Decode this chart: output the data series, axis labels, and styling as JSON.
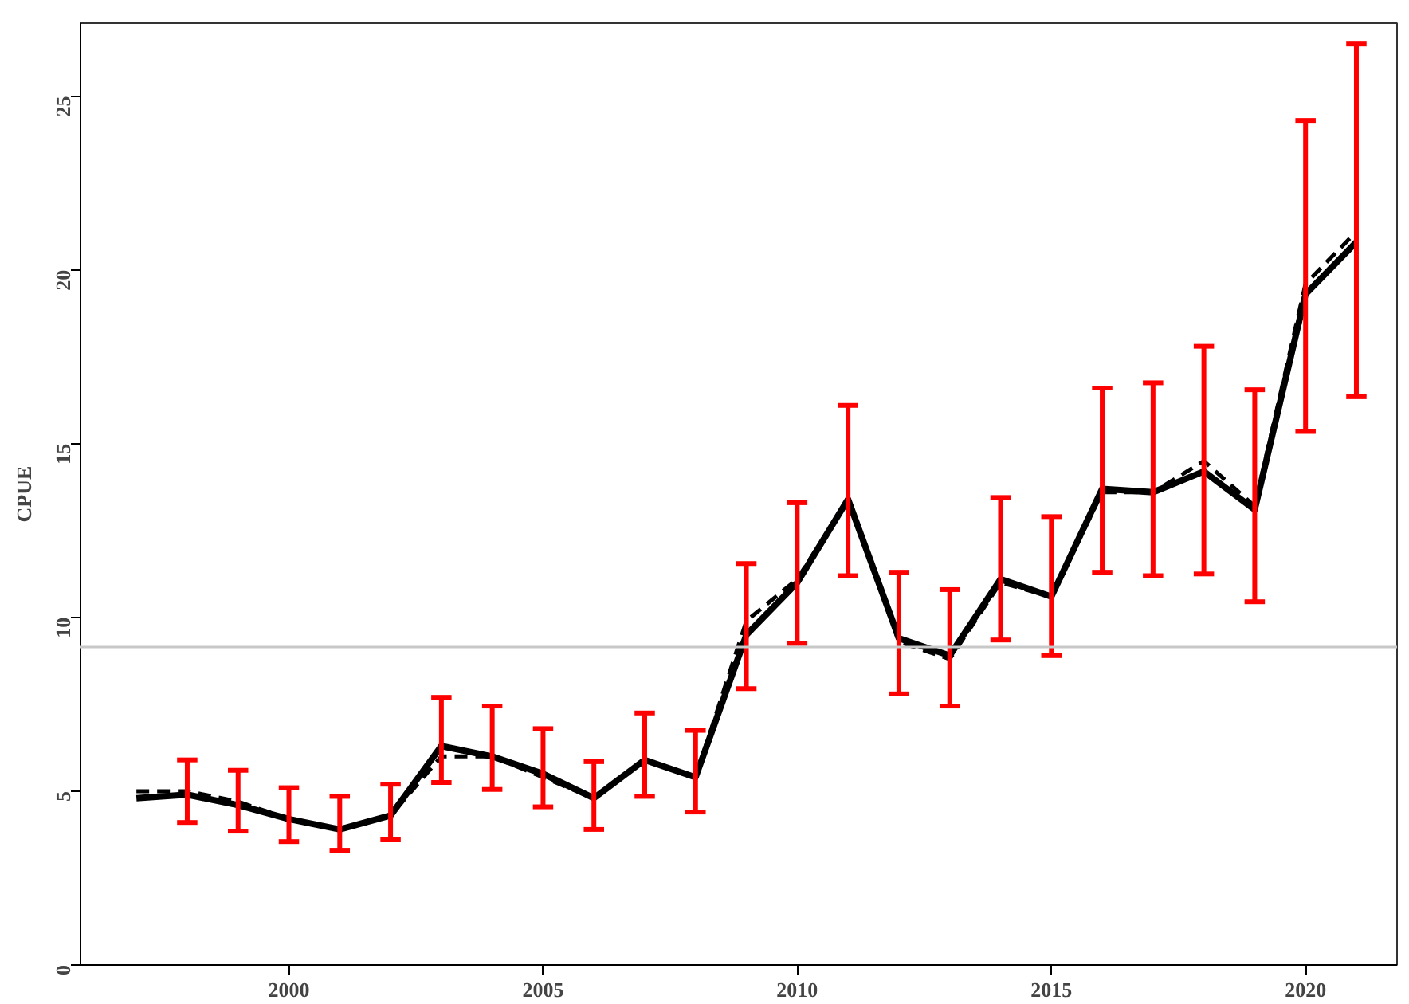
{
  "chart_data": {
    "type": "line",
    "ylabel": "CPUE",
    "x": [
      1997,
      1998,
      1999,
      2000,
      2001,
      2002,
      2003,
      2004,
      2005,
      2006,
      2007,
      2008,
      2009,
      2010,
      2011,
      2012,
      2013,
      2014,
      2015,
      2016,
      2017,
      2018,
      2019,
      2020,
      2021
    ],
    "series": [
      {
        "color": "#000000",
        "line_style": "solid",
        "values": [
          4.8,
          4.9,
          4.6,
          4.2,
          3.9,
          4.3,
          6.3,
          6.0,
          5.5,
          4.8,
          5.9,
          5.4,
          9.5,
          11.0,
          13.4,
          9.4,
          8.9,
          11.1,
          10.6,
          13.7,
          13.6,
          14.2,
          13.1,
          19.3,
          20.8
        ],
        "errors": [
          null,
          [
            4.1,
            5.9
          ],
          [
            3.85,
            5.6
          ],
          [
            3.55,
            5.1
          ],
          [
            3.3,
            4.85
          ],
          [
            3.6,
            5.2
          ],
          [
            5.25,
            7.7
          ],
          [
            5.05,
            7.45
          ],
          [
            4.55,
            6.8
          ],
          [
            3.9,
            5.85
          ],
          [
            4.85,
            7.25
          ],
          [
            4.4,
            6.75
          ],
          [
            7.95,
            11.55
          ],
          [
            9.25,
            13.3
          ],
          [
            11.2,
            16.1
          ],
          [
            7.8,
            11.3
          ],
          [
            7.45,
            10.8
          ],
          [
            9.35,
            13.45
          ],
          [
            8.9,
            12.9
          ],
          [
            11.3,
            16.6
          ],
          [
            11.2,
            16.75
          ],
          [
            11.25,
            17.8
          ],
          [
            10.45,
            16.55
          ],
          [
            15.35,
            24.3
          ],
          [
            16.35,
            26.5
          ]
        ]
      },
      {
        "color": "#000000",
        "line_style": "dashed",
        "values": [
          5.0,
          5.0,
          4.7,
          4.2,
          3.9,
          4.3,
          6.0,
          6.0,
          5.4,
          4.8,
          5.9,
          5.4,
          9.9,
          11.1,
          13.4,
          9.3,
          8.8,
          11.0,
          10.6,
          13.6,
          13.6,
          14.5,
          13.2,
          19.6,
          21.1
        ]
      }
    ],
    "xlim": [
      1995.9,
      2021.8
    ],
    "ylim": [
      0,
      27.1
    ],
    "xticks": [
      2000,
      2005,
      2010,
      2015,
      2020
    ],
    "yticks": [
      0,
      5,
      10,
      15,
      20,
      25
    ],
    "ref_lines": [
      {
        "axis": "y",
        "value": 9.15,
        "color": "#c8c8c8"
      }
    ],
    "grid": false,
    "marker": "none"
  }
}
